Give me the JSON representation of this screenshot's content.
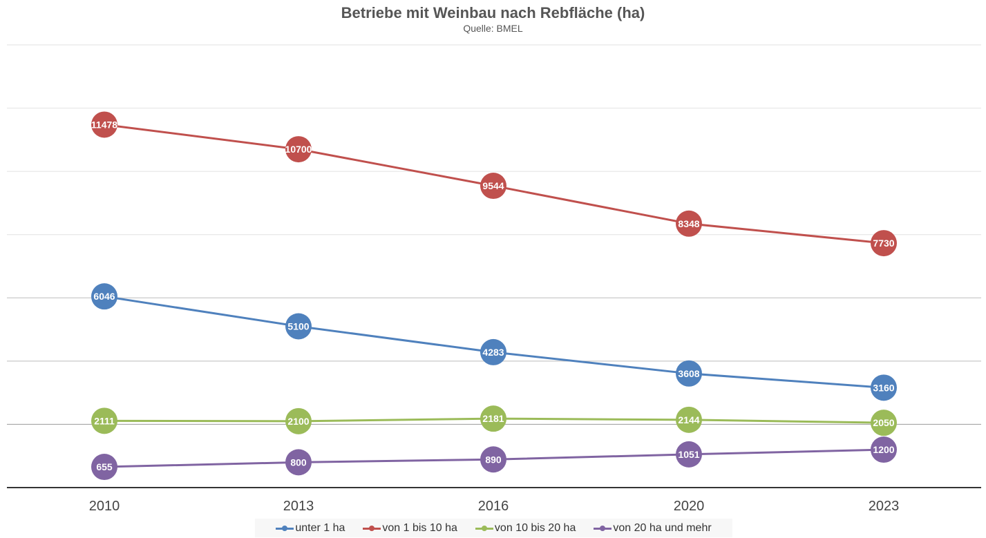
{
  "chart_data": {
    "type": "line",
    "title": "Betriebe mit Weinbau nach Rebfläche (ha)",
    "subtitle": "Quelle: BMEL",
    "categories": [
      "2010",
      "2013",
      "2016",
      "2020",
      "2023"
    ],
    "ylim": [
      0,
      14000
    ],
    "y_gridlines": [
      2000,
      4000,
      6000,
      8000,
      10000,
      12000,
      14000
    ],
    "grid": true,
    "y_tick_labels_shown": false,
    "legend_placement": "bottom",
    "data_labels": true,
    "series": [
      {
        "name": "unter 1 ha",
        "color": "#4f81bd",
        "values": [
          6046,
          5100,
          4283,
          3608,
          3160
        ]
      },
      {
        "name": "von 1 bis 10 ha",
        "color": "#c0504d",
        "values": [
          11478,
          10700,
          9544,
          8348,
          7730
        ]
      },
      {
        "name": "von 10 bis 20 ha",
        "color": "#9bbb59",
        "values": [
          2111,
          2100,
          2181,
          2144,
          2050
        ]
      },
      {
        "name": "von 20 ha und mehr",
        "color": "#8064a2",
        "values": [
          655,
          800,
          890,
          1051,
          1200
        ]
      }
    ]
  }
}
